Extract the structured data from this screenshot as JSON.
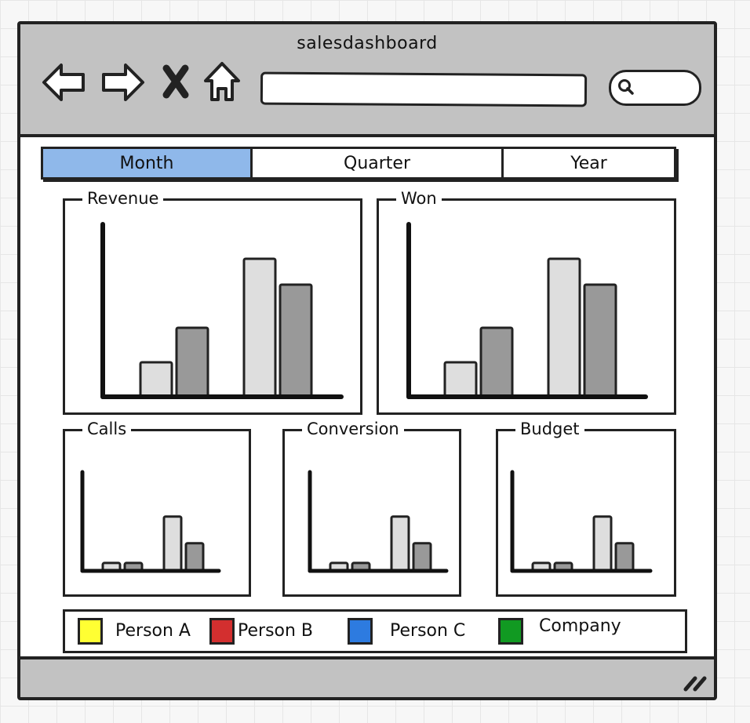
{
  "window": {
    "title": "salesdashboard"
  },
  "nav": {
    "back_icon": "arrow-left-icon",
    "forward_icon": "arrow-right-icon",
    "stop_icon": "close-icon",
    "home_icon": "home-icon",
    "search_icon": "search-icon",
    "url_value": "",
    "search_value": ""
  },
  "tabs": [
    {
      "label": "Month",
      "active": true
    },
    {
      "label": "Quarter",
      "active": false
    },
    {
      "label": "Year",
      "active": false
    }
  ],
  "colors": {
    "active_tab": "#8fb8ea",
    "bar_light": "#dedede",
    "bar_dark": "#999999",
    "chrome": "#c2c2c2"
  },
  "panels": [
    {
      "title": "Revenue"
    },
    {
      "title": "Won"
    },
    {
      "title": "Calls"
    },
    {
      "title": "Conversion"
    },
    {
      "title": "Budget"
    }
  ],
  "chart_data": [
    {
      "type": "bar",
      "title": "Revenue",
      "categories": [
        "",
        ""
      ],
      "series": [
        {
          "values": [
            2,
            8
          ]
        },
        {
          "values": [
            4,
            6.5
          ]
        }
      ],
      "ylim": [
        0,
        10
      ]
    },
    {
      "type": "bar",
      "title": "Won",
      "categories": [
        "",
        ""
      ],
      "series": [
        {
          "values": [
            2,
            8
          ]
        },
        {
          "values": [
            4,
            6.5
          ]
        }
      ],
      "ylim": [
        0,
        10
      ]
    },
    {
      "type": "bar",
      "title": "Calls",
      "categories": [
        "",
        ""
      ],
      "series": [
        {
          "values": [
            0.8,
            5.5
          ]
        },
        {
          "values": [
            0.8,
            2.8
          ]
        }
      ],
      "ylim": [
        0,
        10
      ]
    },
    {
      "type": "bar",
      "title": "Conversion",
      "categories": [
        "",
        ""
      ],
      "series": [
        {
          "values": [
            0.8,
            5.5
          ]
        },
        {
          "values": [
            0.8,
            2.8
          ]
        }
      ],
      "ylim": [
        0,
        10
      ]
    },
    {
      "type": "bar",
      "title": "Budget",
      "categories": [
        "",
        ""
      ],
      "series": [
        {
          "values": [
            0.8,
            5.5
          ]
        },
        {
          "values": [
            0.8,
            2.8
          ]
        }
      ],
      "ylim": [
        0,
        10
      ]
    }
  ],
  "legend": [
    {
      "label": "Person A",
      "color": "#ffff33"
    },
    {
      "label": "Person B",
      "color": "#d32f2f"
    },
    {
      "label": "Person C",
      "color": "#2d7be0"
    },
    {
      "label": "Company",
      "color": "#119a22"
    }
  ],
  "statusbar": {
    "grip_icon": "resize-grip-icon"
  }
}
